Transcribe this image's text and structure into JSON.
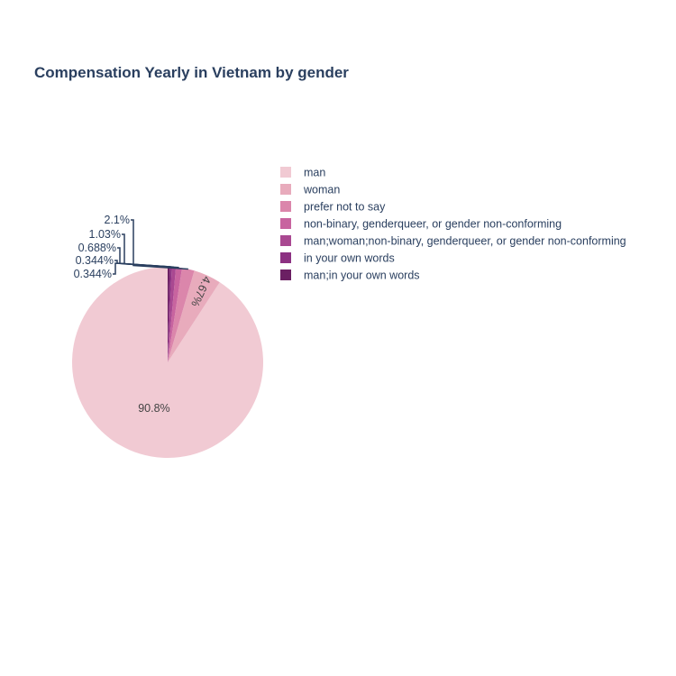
{
  "chart_data": {
    "type": "pie",
    "title": "Compensation Yearly in Vietnam by gender",
    "slices": [
      {
        "label": "man",
        "value": 90.8,
        "text": "90.8%",
        "color": "#f1cad3"
      },
      {
        "label": "woman",
        "value": 4.67,
        "text": "4.67%",
        "color": "#e8abbc"
      },
      {
        "label": "prefer not to say",
        "value": 2.1,
        "text": "2.1%",
        "color": "#db86ab"
      },
      {
        "label": "non-binary, genderqueer, or gender non-conforming",
        "value": 1.03,
        "text": "1.03%",
        "color": "#c8649f"
      },
      {
        "label": "man;woman;non-binary, genderqueer, or gender non-conforming",
        "value": 0.688,
        "text": "0.688%",
        "color": "#a94891"
      },
      {
        "label": "in your own words",
        "value": 0.344,
        "text": "0.344%",
        "color": "#8c3182"
      },
      {
        "label": "man;in your own words",
        "value": 0.344,
        "text": "0.344%",
        "color": "#6b1f63"
      }
    ],
    "direction": "counterclockwise",
    "start_angle": "12 o'clock",
    "legend_position": "right"
  }
}
